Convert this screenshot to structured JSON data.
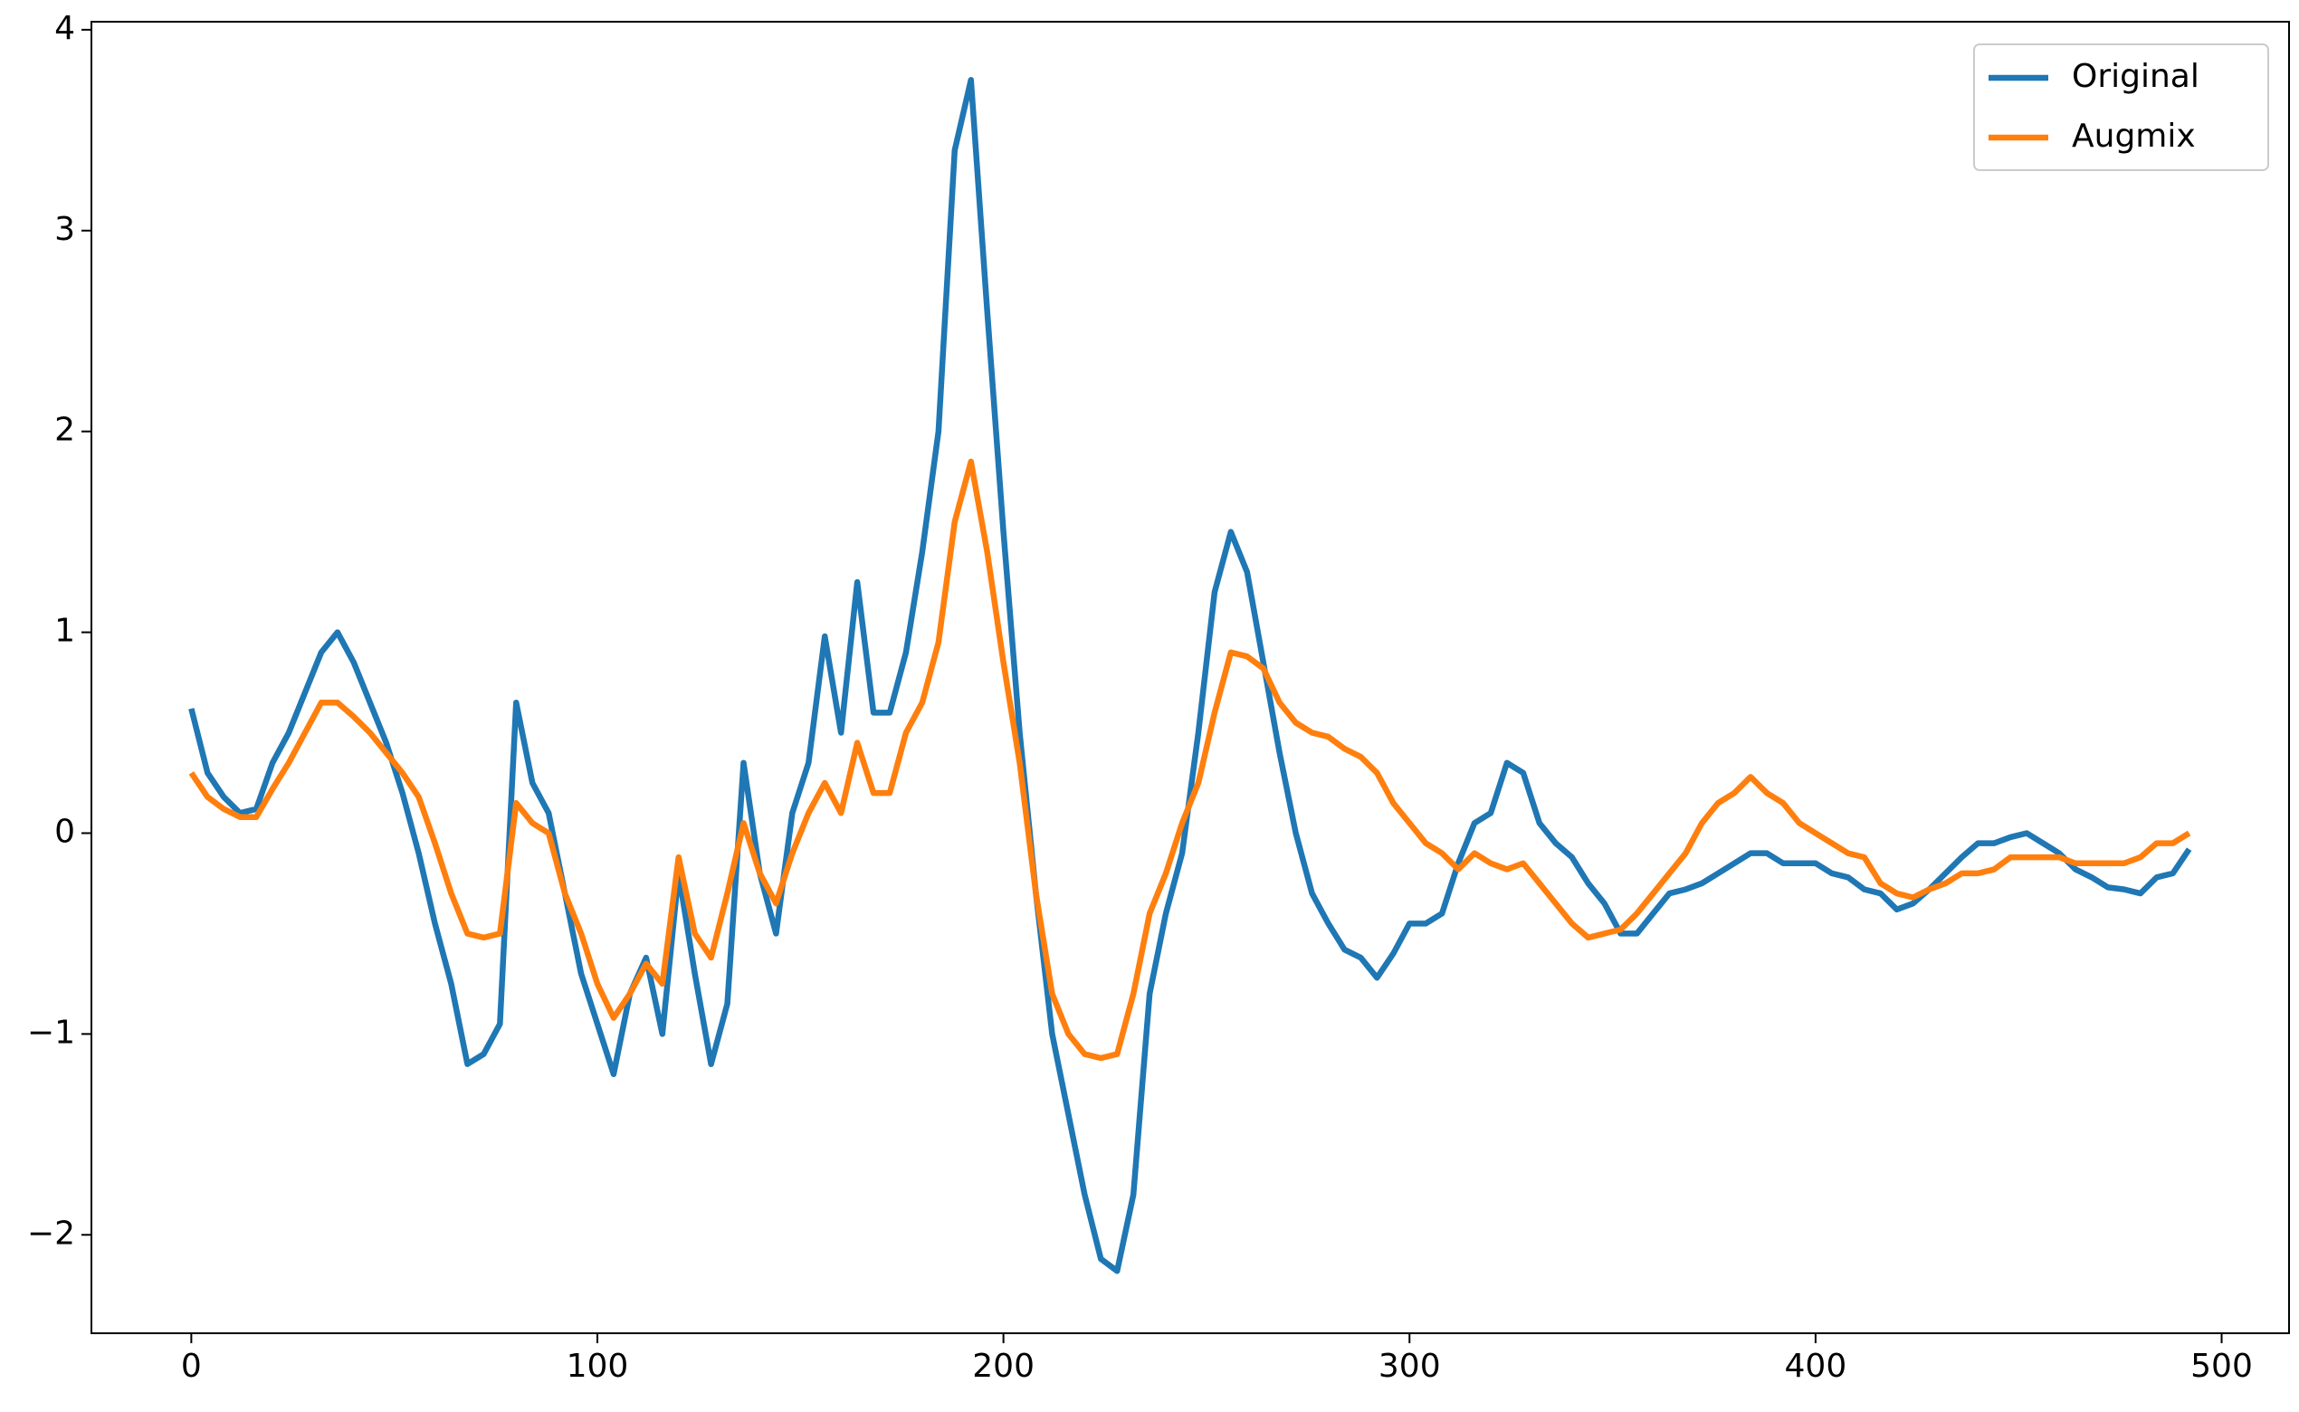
{
  "chart_data": {
    "type": "line",
    "x": [
      0,
      4,
      8,
      12,
      16,
      20,
      24,
      28,
      32,
      36,
      40,
      44,
      48,
      52,
      56,
      60,
      64,
      68,
      72,
      76,
      80,
      84,
      88,
      92,
      96,
      100,
      104,
      108,
      112,
      116,
      120,
      124,
      128,
      132,
      136,
      140,
      144,
      148,
      152,
      156,
      160,
      164,
      168,
      172,
      176,
      180,
      184,
      188,
      192,
      196,
      200,
      204,
      208,
      212,
      216,
      220,
      224,
      228,
      232,
      236,
      240,
      244,
      248,
      252,
      256,
      260,
      264,
      268,
      272,
      276,
      280,
      284,
      288,
      292,
      296,
      300,
      304,
      308,
      312,
      316,
      320,
      324,
      328,
      332,
      336,
      340,
      344,
      348,
      352,
      356,
      360,
      364,
      368,
      372,
      376,
      380,
      384,
      388,
      392,
      396,
      400,
      404,
      408,
      412,
      416,
      420,
      424,
      428,
      432,
      436,
      440,
      444,
      448,
      452,
      456,
      460,
      464,
      468,
      472,
      476,
      480,
      484,
      488,
      492
    ],
    "series": [
      {
        "name": "Original",
        "color": "#1f77b4",
        "values": [
          0.62,
          0.3,
          0.18,
          0.1,
          0.12,
          0.35,
          0.5,
          0.7,
          0.9,
          1.0,
          0.85,
          0.65,
          0.45,
          0.2,
          -0.1,
          -0.45,
          -0.75,
          -1.15,
          -1.1,
          -0.95,
          0.65,
          0.25,
          0.1,
          -0.3,
          -0.7,
          -0.95,
          -1.2,
          -0.8,
          -0.62,
          -1.0,
          -0.2,
          -0.7,
          -1.15,
          -0.85,
          0.35,
          -0.2,
          -0.5,
          0.1,
          0.35,
          0.98,
          0.5,
          1.25,
          0.6,
          0.6,
          0.9,
          1.4,
          2.0,
          3.4,
          3.75,
          2.6,
          1.5,
          0.5,
          -0.3,
          -1.0,
          -1.4,
          -1.8,
          -2.12,
          -2.18,
          -1.8,
          -0.8,
          -0.4,
          -0.1,
          0.5,
          1.2,
          1.5,
          1.3,
          0.85,
          0.4,
          0.0,
          -0.3,
          -0.45,
          -0.58,
          -0.62,
          -0.72,
          -0.6,
          -0.45,
          -0.45,
          -0.4,
          -0.15,
          0.05,
          0.1,
          0.35,
          0.3,
          0.05,
          -0.05,
          -0.12,
          -0.25,
          -0.35,
          -0.5,
          -0.5,
          -0.4,
          -0.3,
          -0.28,
          -0.25,
          -0.2,
          -0.15,
          -0.1,
          -0.1,
          -0.15,
          -0.15,
          -0.15,
          -0.2,
          -0.22,
          -0.28,
          -0.3,
          -0.38,
          -0.35,
          -0.28,
          -0.2,
          -0.12,
          -0.05,
          -0.05,
          -0.02,
          0.0,
          -0.05,
          -0.1,
          -0.18,
          -0.22,
          -0.27,
          -0.28,
          -0.3,
          -0.22,
          -0.2,
          -0.08
        ]
      },
      {
        "name": "Augmix",
        "color": "#ff7f0e",
        "values": [
          0.3,
          0.18,
          0.12,
          0.08,
          0.08,
          0.22,
          0.35,
          0.5,
          0.65,
          0.65,
          0.58,
          0.5,
          0.4,
          0.3,
          0.18,
          -0.05,
          -0.3,
          -0.5,
          -0.52,
          -0.5,
          0.15,
          0.05,
          0.0,
          -0.3,
          -0.5,
          -0.75,
          -0.92,
          -0.8,
          -0.65,
          -0.75,
          -0.12,
          -0.5,
          -0.62,
          -0.3,
          0.05,
          -0.2,
          -0.35,
          -0.1,
          0.1,
          0.25,
          0.1,
          0.45,
          0.2,
          0.2,
          0.5,
          0.65,
          0.95,
          1.55,
          1.85,
          1.4,
          0.85,
          0.35,
          -0.3,
          -0.8,
          -1.0,
          -1.1,
          -1.12,
          -1.1,
          -0.8,
          -0.4,
          -0.2,
          0.05,
          0.25,
          0.6,
          0.9,
          0.88,
          0.82,
          0.65,
          0.55,
          0.5,
          0.48,
          0.42,
          0.38,
          0.3,
          0.15,
          0.05,
          -0.05,
          -0.1,
          -0.18,
          -0.1,
          -0.15,
          -0.18,
          -0.15,
          -0.25,
          -0.35,
          -0.45,
          -0.52,
          -0.5,
          -0.48,
          -0.4,
          -0.3,
          -0.2,
          -0.1,
          0.05,
          0.15,
          0.2,
          0.28,
          0.2,
          0.15,
          0.05,
          0.0,
          -0.05,
          -0.1,
          -0.12,
          -0.25,
          -0.3,
          -0.32,
          -0.28,
          -0.25,
          -0.2,
          -0.2,
          -0.18,
          -0.12,
          -0.12,
          -0.12,
          -0.12,
          -0.15,
          -0.15,
          -0.15,
          -0.15,
          -0.12,
          -0.05,
          -0.05,
          0.0
        ]
      }
    ],
    "xlim": [
      -24.6,
      516.6
    ],
    "xticks": [
      0,
      100,
      200,
      300,
      400,
      500
    ],
    "ylim": [
      -2.49,
      4.04
    ],
    "yticks": [
      {
        "value": -2,
        "label": "−2"
      },
      {
        "value": -1,
        "label": "−1"
      },
      0,
      1,
      2,
      3,
      4
    ],
    "grid": false,
    "legend": "upper right"
  }
}
